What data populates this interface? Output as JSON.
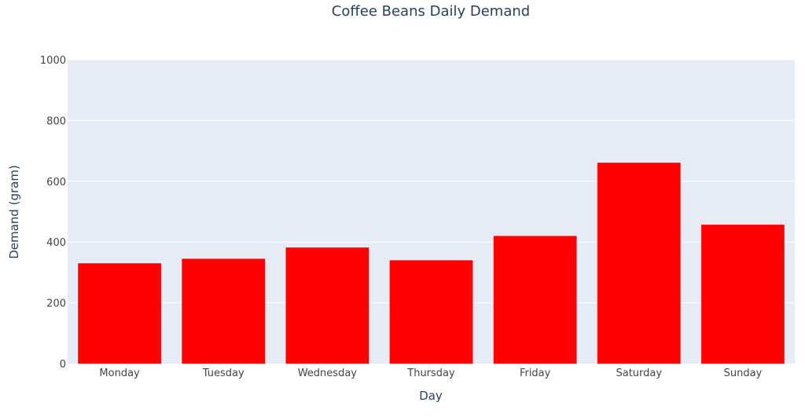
{
  "chart_data": {
    "type": "bar",
    "title": "Coffee Beans Daily Demand",
    "xlabel": "Day",
    "ylabel": "Demand (gram)",
    "categories": [
      "Monday",
      "Tuesday",
      "Wednesday",
      "Thursday",
      "Friday",
      "Saturday",
      "Sunday"
    ],
    "values": [
      330,
      345,
      382,
      340,
      420,
      661,
      457
    ],
    "ylim": [
      0,
      1000
    ],
    "yticks": [
      0,
      200,
      400,
      600,
      800,
      1000
    ],
    "ytick_labels": [
      "0",
      "200",
      "400",
      "600",
      "800",
      "1000"
    ],
    "grid": true,
    "legend": false,
    "colors": {
      "bar": "#ff0000",
      "plot_background": "#e5ecf6",
      "gridline": "#ffffff",
      "text": "#2a3f5f",
      "tick_text": "#444444"
    }
  }
}
